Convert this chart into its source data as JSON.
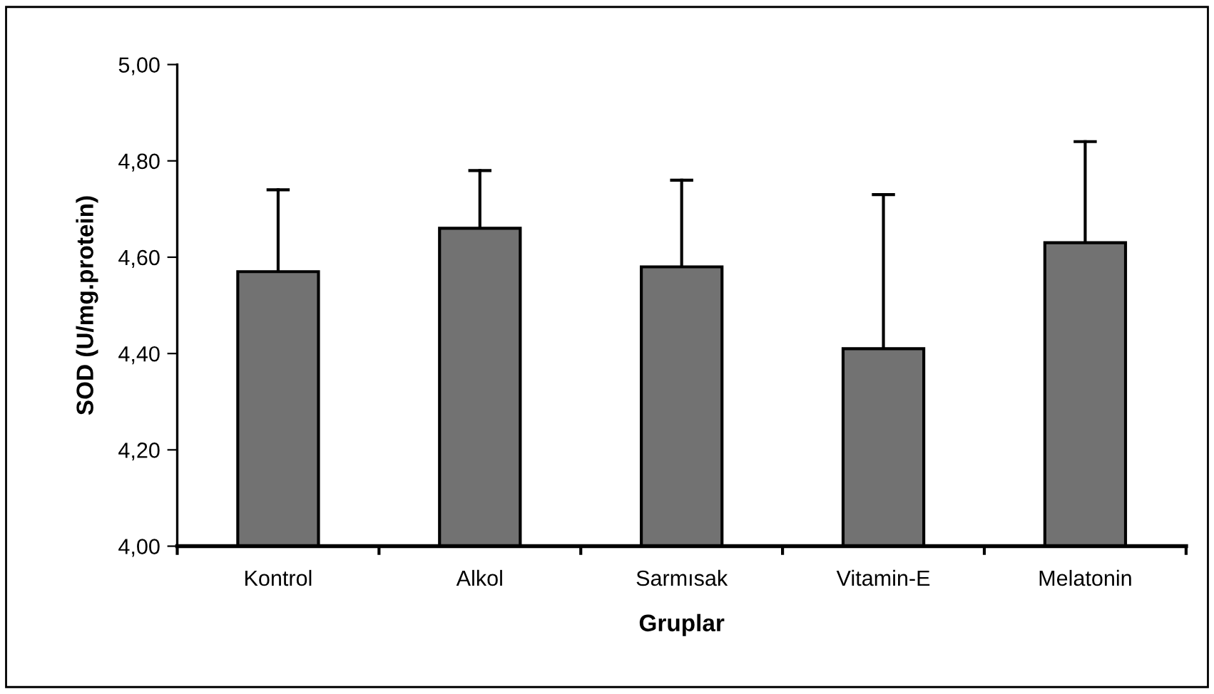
{
  "chart_data": {
    "type": "bar",
    "xlabel": "Gruplar",
    "ylabel": "SOD (U/mg.protein)",
    "categories": [
      "Kontrol",
      "Alkol",
      "Sarmısak",
      "Vitamin-E",
      "Melatonin"
    ],
    "values": [
      4.57,
      4.66,
      4.58,
      4.41,
      4.63
    ],
    "errors": [
      [
        4.57,
        4.74
      ],
      [
        4.66,
        4.78
      ],
      [
        4.58,
        4.76
      ],
      [
        4.41,
        4.73
      ],
      [
        4.63,
        4.84
      ]
    ],
    "color": "#727272",
    "ylim": [
      4.0,
      5.0
    ],
    "yticks": [
      {
        "value": 4.0,
        "label": "4,00"
      },
      {
        "value": 4.2,
        "label": "4,20"
      },
      {
        "value": 4.4,
        "label": "4,40"
      },
      {
        "value": 4.6,
        "label": "4,60"
      },
      {
        "value": 4.8,
        "label": "4,80"
      },
      {
        "value": 5.0,
        "label": "5,00"
      }
    ],
    "grid": false,
    "legend": false
  }
}
